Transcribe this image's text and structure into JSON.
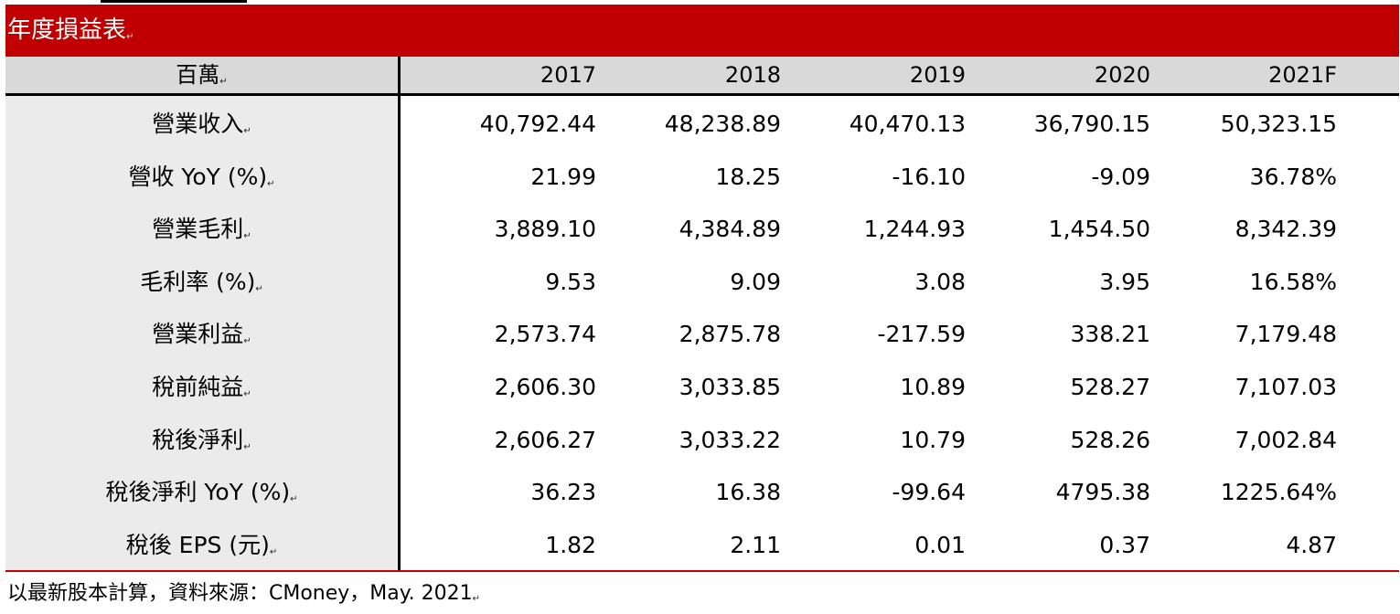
{
  "title": "年度損益表",
  "columns": [
    "百萬",
    "2017",
    "2018",
    "2019",
    "2020",
    "2021F"
  ],
  "rows": [
    {
      "label": "營業收入",
      "values": [
        "40,792.44",
        "48,238.89",
        "40,470.13",
        "36,790.15",
        "50,323.15"
      ]
    },
    {
      "label": "營收 YoY (%)",
      "values": [
        "21.99",
        "18.25",
        "-16.10",
        "-9.09",
        "36.78%"
      ]
    },
    {
      "label": "營業毛利",
      "values": [
        "3,889.10",
        "4,384.89",
        "1,244.93",
        "1,454.50",
        "8,342.39"
      ]
    },
    {
      "label": "毛利率  (%)",
      "values": [
        "9.53",
        "9.09",
        "3.08",
        "3.95",
        "16.58%"
      ]
    },
    {
      "label": "營業利益",
      "values": [
        "2,573.74",
        "2,875.78",
        "-217.59",
        "338.21",
        "7,179.48"
      ]
    },
    {
      "label": "稅前純益",
      "values": [
        "2,606.30",
        "3,033.85",
        "10.89",
        "528.27",
        "7,107.03"
      ]
    },
    {
      "label": "稅後淨利",
      "values": [
        "2,606.27",
        "3,033.22",
        "10.79",
        "528.26",
        "7,002.84"
      ]
    },
    {
      "label": "稅後淨利 YoY (%)",
      "values": [
        "36.23",
        "16.38",
        "-99.64",
        "4795.38",
        "1225.64%"
      ]
    },
    {
      "label": "稅後 EPS (元)",
      "values": [
        "1.82",
        "2.11",
        "0.01",
        "0.37",
        "4.87"
      ]
    }
  ],
  "footnote": "以最新股本計算，資料來源：CMoney，May. 2021",
  "colors": {
    "title_bar": "#c00000",
    "header_bg": "#d9d9d9",
    "label_bg": "#ebebeb"
  }
}
